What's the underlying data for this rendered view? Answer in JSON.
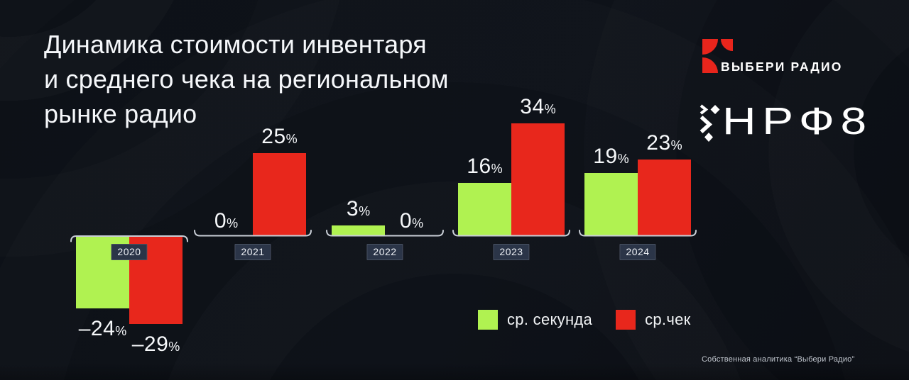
{
  "title": {
    "lines": [
      "Динамика стоимости инвентаря",
      "и среднего чека на региональном",
      "рынке радио"
    ]
  },
  "logos": {
    "vyberi_radio": {
      "name": "ВЫБЕРИ РАДИО",
      "mark_color": "#e8251c"
    },
    "nrf": {
      "name": "НРФ8"
    }
  },
  "legend": [
    {
      "label": "ср. секунда",
      "color": "#b0f251"
    },
    {
      "label": "ср.чек",
      "color": "#e8271c"
    }
  ],
  "footnote": "Собственная аналитика “Выбери Радио”",
  "chart_data": {
    "type": "bar",
    "categories": [
      "2020",
      "2021",
      "2022",
      "2023",
      "2024"
    ],
    "series": [
      {
        "name": "ср. секунда",
        "color": "#b0f251",
        "values": [
          -24,
          0,
          3,
          16,
          19
        ],
        "labels": [
          "–24",
          "0",
          "3",
          "16",
          "19"
        ]
      },
      {
        "name": "ср.чек",
        "color": "#e8271c",
        "values": [
          -29,
          25,
          0,
          34,
          23
        ],
        "labels": [
          "–29",
          "25",
          "0",
          "34",
          "23"
        ]
      }
    ],
    "unit": "%",
    "baseline": 0,
    "grid": false,
    "axis_color": "#c9ced6",
    "year_chip_bg": "#2b3548",
    "legend_position": "bottom-right",
    "ylim": [
      -29,
      34
    ]
  },
  "colors": {
    "background": "#0d1117",
    "text": "#f5f7fa"
  }
}
